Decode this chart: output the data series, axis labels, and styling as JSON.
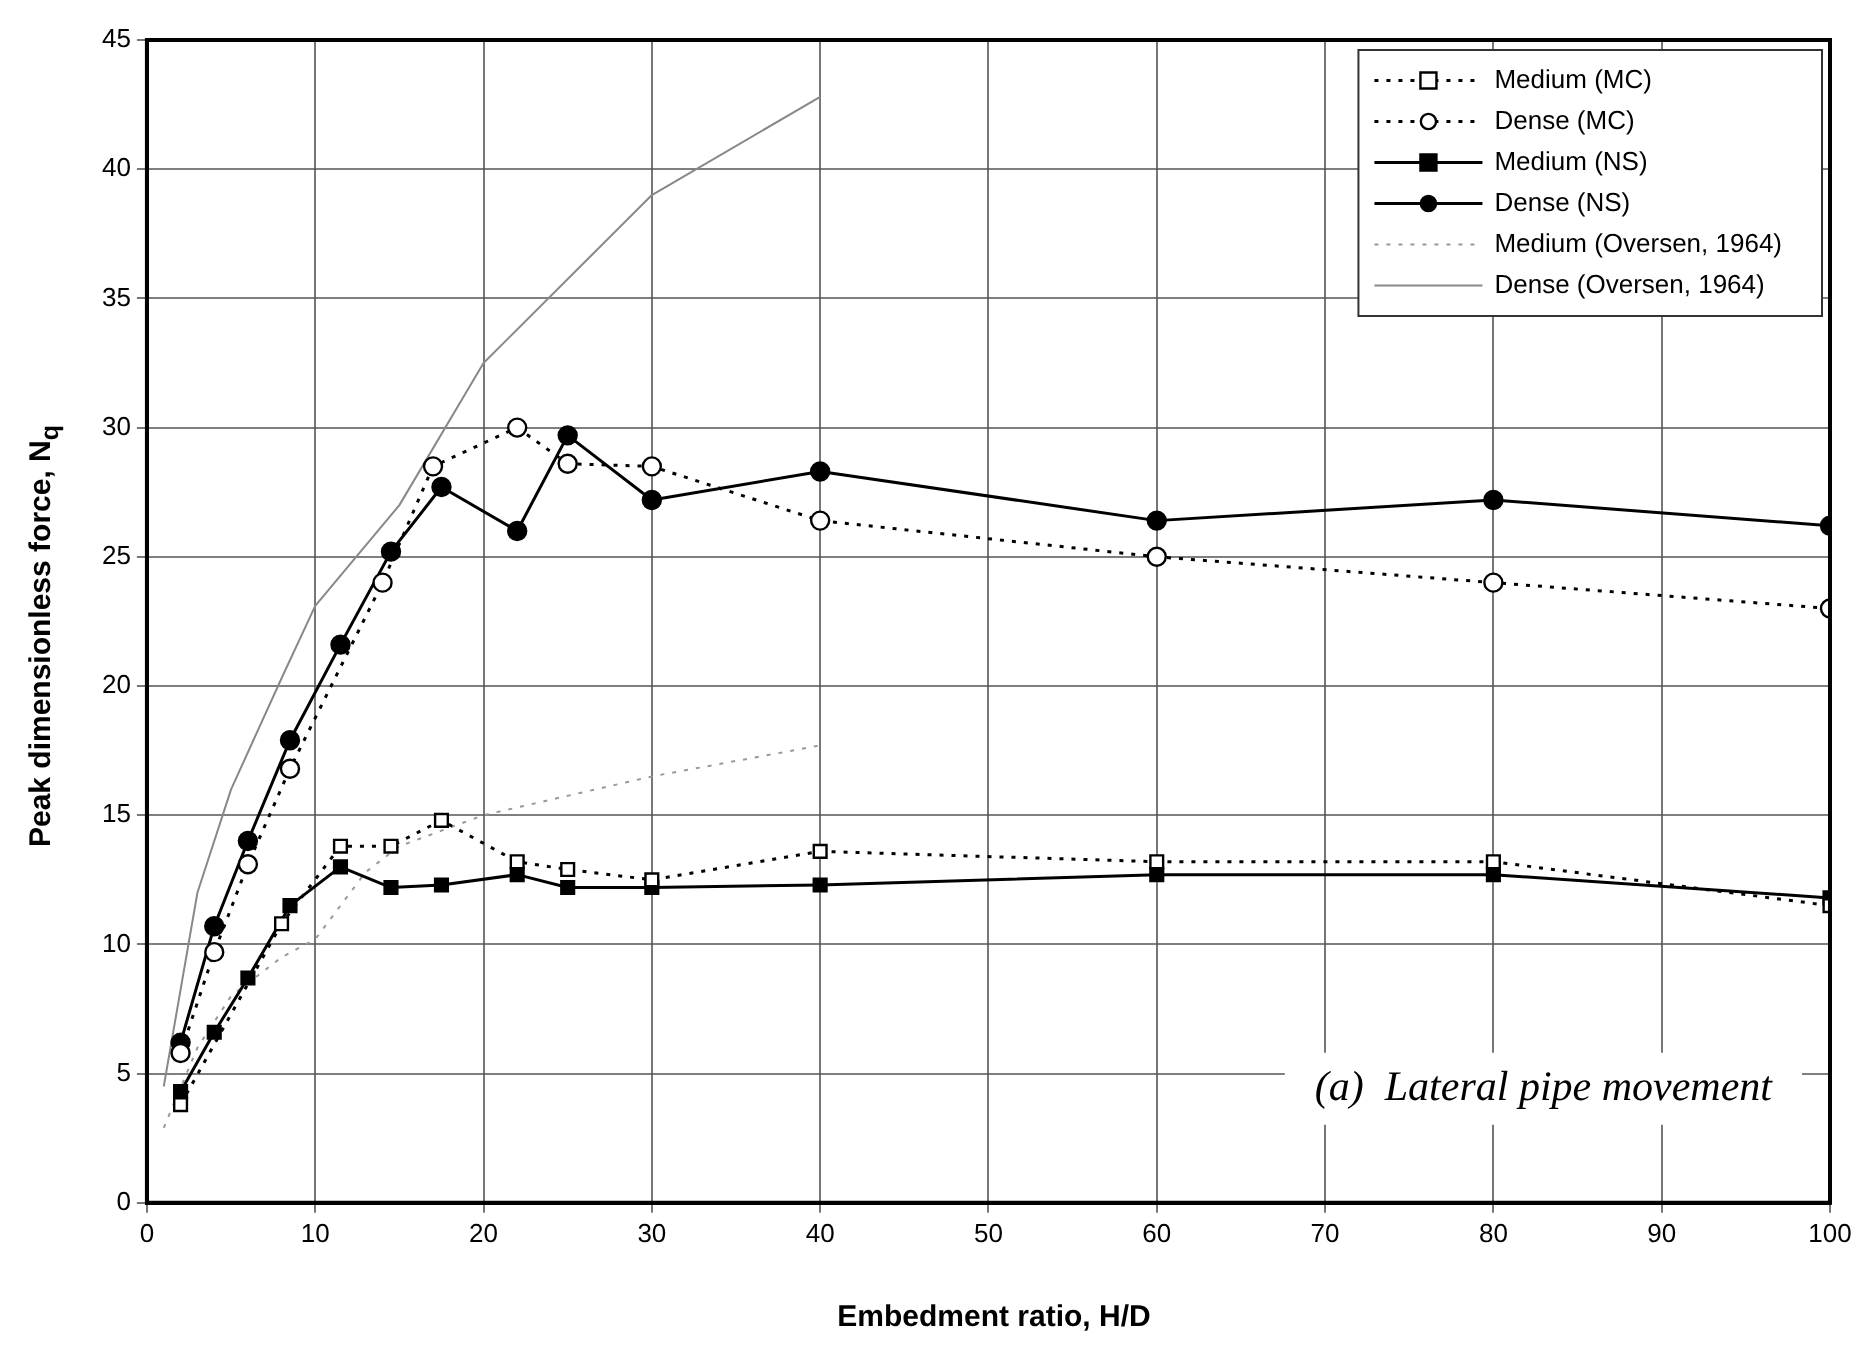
{
  "chart_data": {
    "type": "line",
    "xlabel": "Embedment ratio, H/D",
    "ylabel": "Peak dimensionless force, N$_{q}$",
    "xlim": [
      0,
      100
    ],
    "xticks": [
      0,
      10,
      20,
      30,
      40,
      50,
      60,
      70,
      80,
      90,
      100
    ],
    "ylim": [
      0,
      45
    ],
    "yticks": [
      0,
      5,
      10,
      15,
      20,
      25,
      30,
      35,
      40,
      45
    ],
    "grid": true,
    "legend": "top right",
    "annotations": [
      "(a)  Lateral pipe movement"
    ],
    "series": [
      {
        "name": "Medium (MC)",
        "color": "#000000",
        "marker": "square",
        "line_style": "dotted",
        "x": [
          2,
          8,
          11.5,
          14.5,
          17.5,
          22,
          25,
          30,
          40,
          60,
          80,
          100
        ],
        "values": [
          3.8,
          10.8,
          13.8,
          13.8,
          14.8,
          13.2,
          12.9,
          12.5,
          13.6,
          13.2,
          13.2,
          11.5
        ]
      },
      {
        "name": "Dense (MC)",
        "color": "#000000",
        "marker": "circle",
        "line_style": "dotted",
        "x": [
          2,
          4,
          6,
          8.5,
          14,
          17,
          22,
          25,
          30,
          40,
          60,
          80,
          100
        ],
        "values": [
          5.8,
          9.7,
          13.1,
          16.8,
          24.0,
          28.5,
          30.0,
          28.6,
          28.5,
          26.4,
          25.0,
          24.0,
          23.0
        ]
      },
      {
        "name": "Medium (NS)",
        "color": "#000000",
        "marker": "square",
        "line_style": "solid",
        "x": [
          2,
          4,
          6,
          8.5,
          11.5,
          14.5,
          17.5,
          22,
          25,
          30,
          40,
          60,
          80,
          100
        ],
        "values": [
          4.3,
          6.6,
          8.7,
          11.5,
          13.0,
          12.2,
          12.3,
          12.7,
          12.2,
          12.2,
          12.3,
          12.7,
          12.7,
          11.8
        ]
      },
      {
        "name": "Dense (NS)",
        "color": "#000000",
        "marker": "circle",
        "line_style": "solid",
        "x": [
          2,
          4,
          6,
          8.5,
          11.5,
          14.5,
          17.5,
          22,
          25,
          30,
          40,
          60,
          80,
          100
        ],
        "values": [
          6.2,
          10.7,
          14.0,
          17.9,
          21.6,
          25.2,
          27.7,
          26.0,
          29.7,
          27.2,
          28.3,
          26.4,
          27.2,
          26.2
        ]
      },
      {
        "name": "Medium (Oversen, 1964)",
        "color": "#999999",
        "marker": "none",
        "line_style": "dotted",
        "x": [
          1,
          3,
          5,
          8,
          10,
          13,
          15,
          20,
          30,
          40
        ],
        "values": [
          2.9,
          6.0,
          8.0,
          9.5,
          10.2,
          12.8,
          13.8,
          15.0,
          16.5,
          17.7
        ]
      },
      {
        "name": "Dense (Oversen, 1964)",
        "color": "#888888",
        "marker": "none",
        "line_style": "solid",
        "x": [
          1,
          3,
          5,
          8,
          10,
          15,
          20,
          30,
          40
        ],
        "values": [
          4.5,
          12.0,
          16.0,
          20.3,
          23.1,
          27.0,
          32.5,
          39.0,
          42.8
        ]
      }
    ]
  }
}
